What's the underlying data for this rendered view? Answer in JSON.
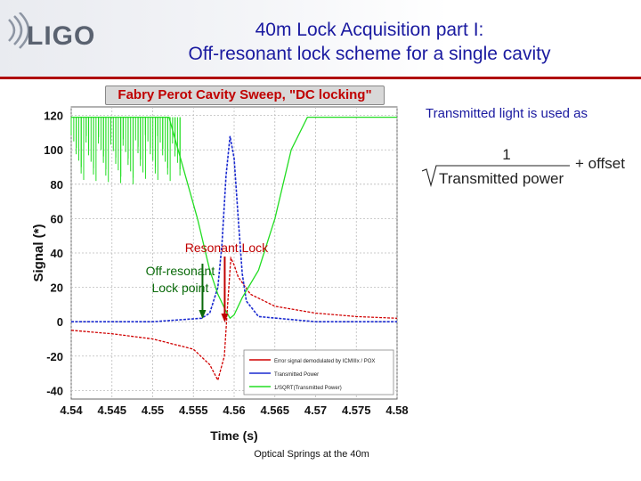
{
  "header": {
    "logo_text": "LIGO",
    "title_line1": "40m Lock Acquisition part I:",
    "title_line2": "Off-resonant lock scheme for a single cavity"
  },
  "note": {
    "text": "Transmitted light is used as",
    "formula_numerator": "1",
    "formula_denominator": "Transmitted power",
    "formula_suffix": "+ offset"
  },
  "footer": {
    "text": "Optical Springs at the 40m"
  },
  "colors": {
    "title": "#1a1aa0",
    "rule": "#b00000",
    "error": "#d00000",
    "transmitted": "#1a2ad0",
    "inv_sqrt": "#22dd22",
    "annotation_red": "#c00000"
  },
  "chart_data": {
    "type": "line",
    "title": "Fabry Perot Cavity Sweep, \"DC locking\"",
    "xlabel": "Time (s)",
    "ylabel": "Signal (*)",
    "xlim": [
      4.54,
      4.58
    ],
    "ylim": [
      -45,
      125
    ],
    "x_ticks": [
      "4.54",
      "4.545",
      "4.55",
      "4.555",
      "4.56",
      "4.565",
      "4.57",
      "4.575",
      "4.58"
    ],
    "y_ticks": [
      "120",
      "100",
      "80",
      "60",
      "40",
      "20",
      "0",
      "-20",
      "-40"
    ],
    "grid": true,
    "legend_position": "bottom-right",
    "series": [
      {
        "name": "Error signal demodulated by ICMIIIx / POX",
        "color": "#d00000",
        "x": [
          4.54,
          4.545,
          4.55,
          4.555,
          4.557,
          4.558,
          4.5588,
          4.5592,
          4.5596,
          4.56,
          4.5605,
          4.562,
          4.565,
          4.57,
          4.575,
          4.58
        ],
        "y": [
          -5,
          -7,
          -10,
          -16,
          -25,
          -34,
          -20,
          10,
          37,
          33,
          26,
          16,
          9,
          5,
          3,
          2
        ]
      },
      {
        "name": "Transmitted Power",
        "color": "#1a2ad0",
        "x": [
          4.54,
          4.55,
          4.556,
          4.557,
          4.558,
          4.5585,
          4.559,
          4.5595,
          4.56,
          4.5605,
          4.561,
          4.5615,
          4.563,
          4.57,
          4.58
        ],
        "y": [
          0,
          0,
          2,
          5,
          20,
          45,
          85,
          108,
          95,
          60,
          28,
          12,
          3,
          0,
          0
        ]
      },
      {
        "name": "1/SQRT(Transmitted Power)",
        "color": "#22dd22",
        "x": [
          4.54,
          4.552,
          4.5555,
          4.557,
          4.558,
          4.559,
          4.5595,
          4.56,
          4.561,
          4.563,
          4.565,
          4.567,
          4.569,
          4.58
        ],
        "y": [
          119,
          119,
          60,
          30,
          16,
          6,
          2,
          4,
          14,
          30,
          60,
          100,
          119,
          119
        ]
      }
    ],
    "annotations": [
      {
        "text": "Resonant Lock",
        "x": 4.5595,
        "color": "#c00000"
      },
      {
        "text": "Off-resonant Lock point",
        "x": 4.5583,
        "color": "#0a6a0a"
      }
    ]
  }
}
